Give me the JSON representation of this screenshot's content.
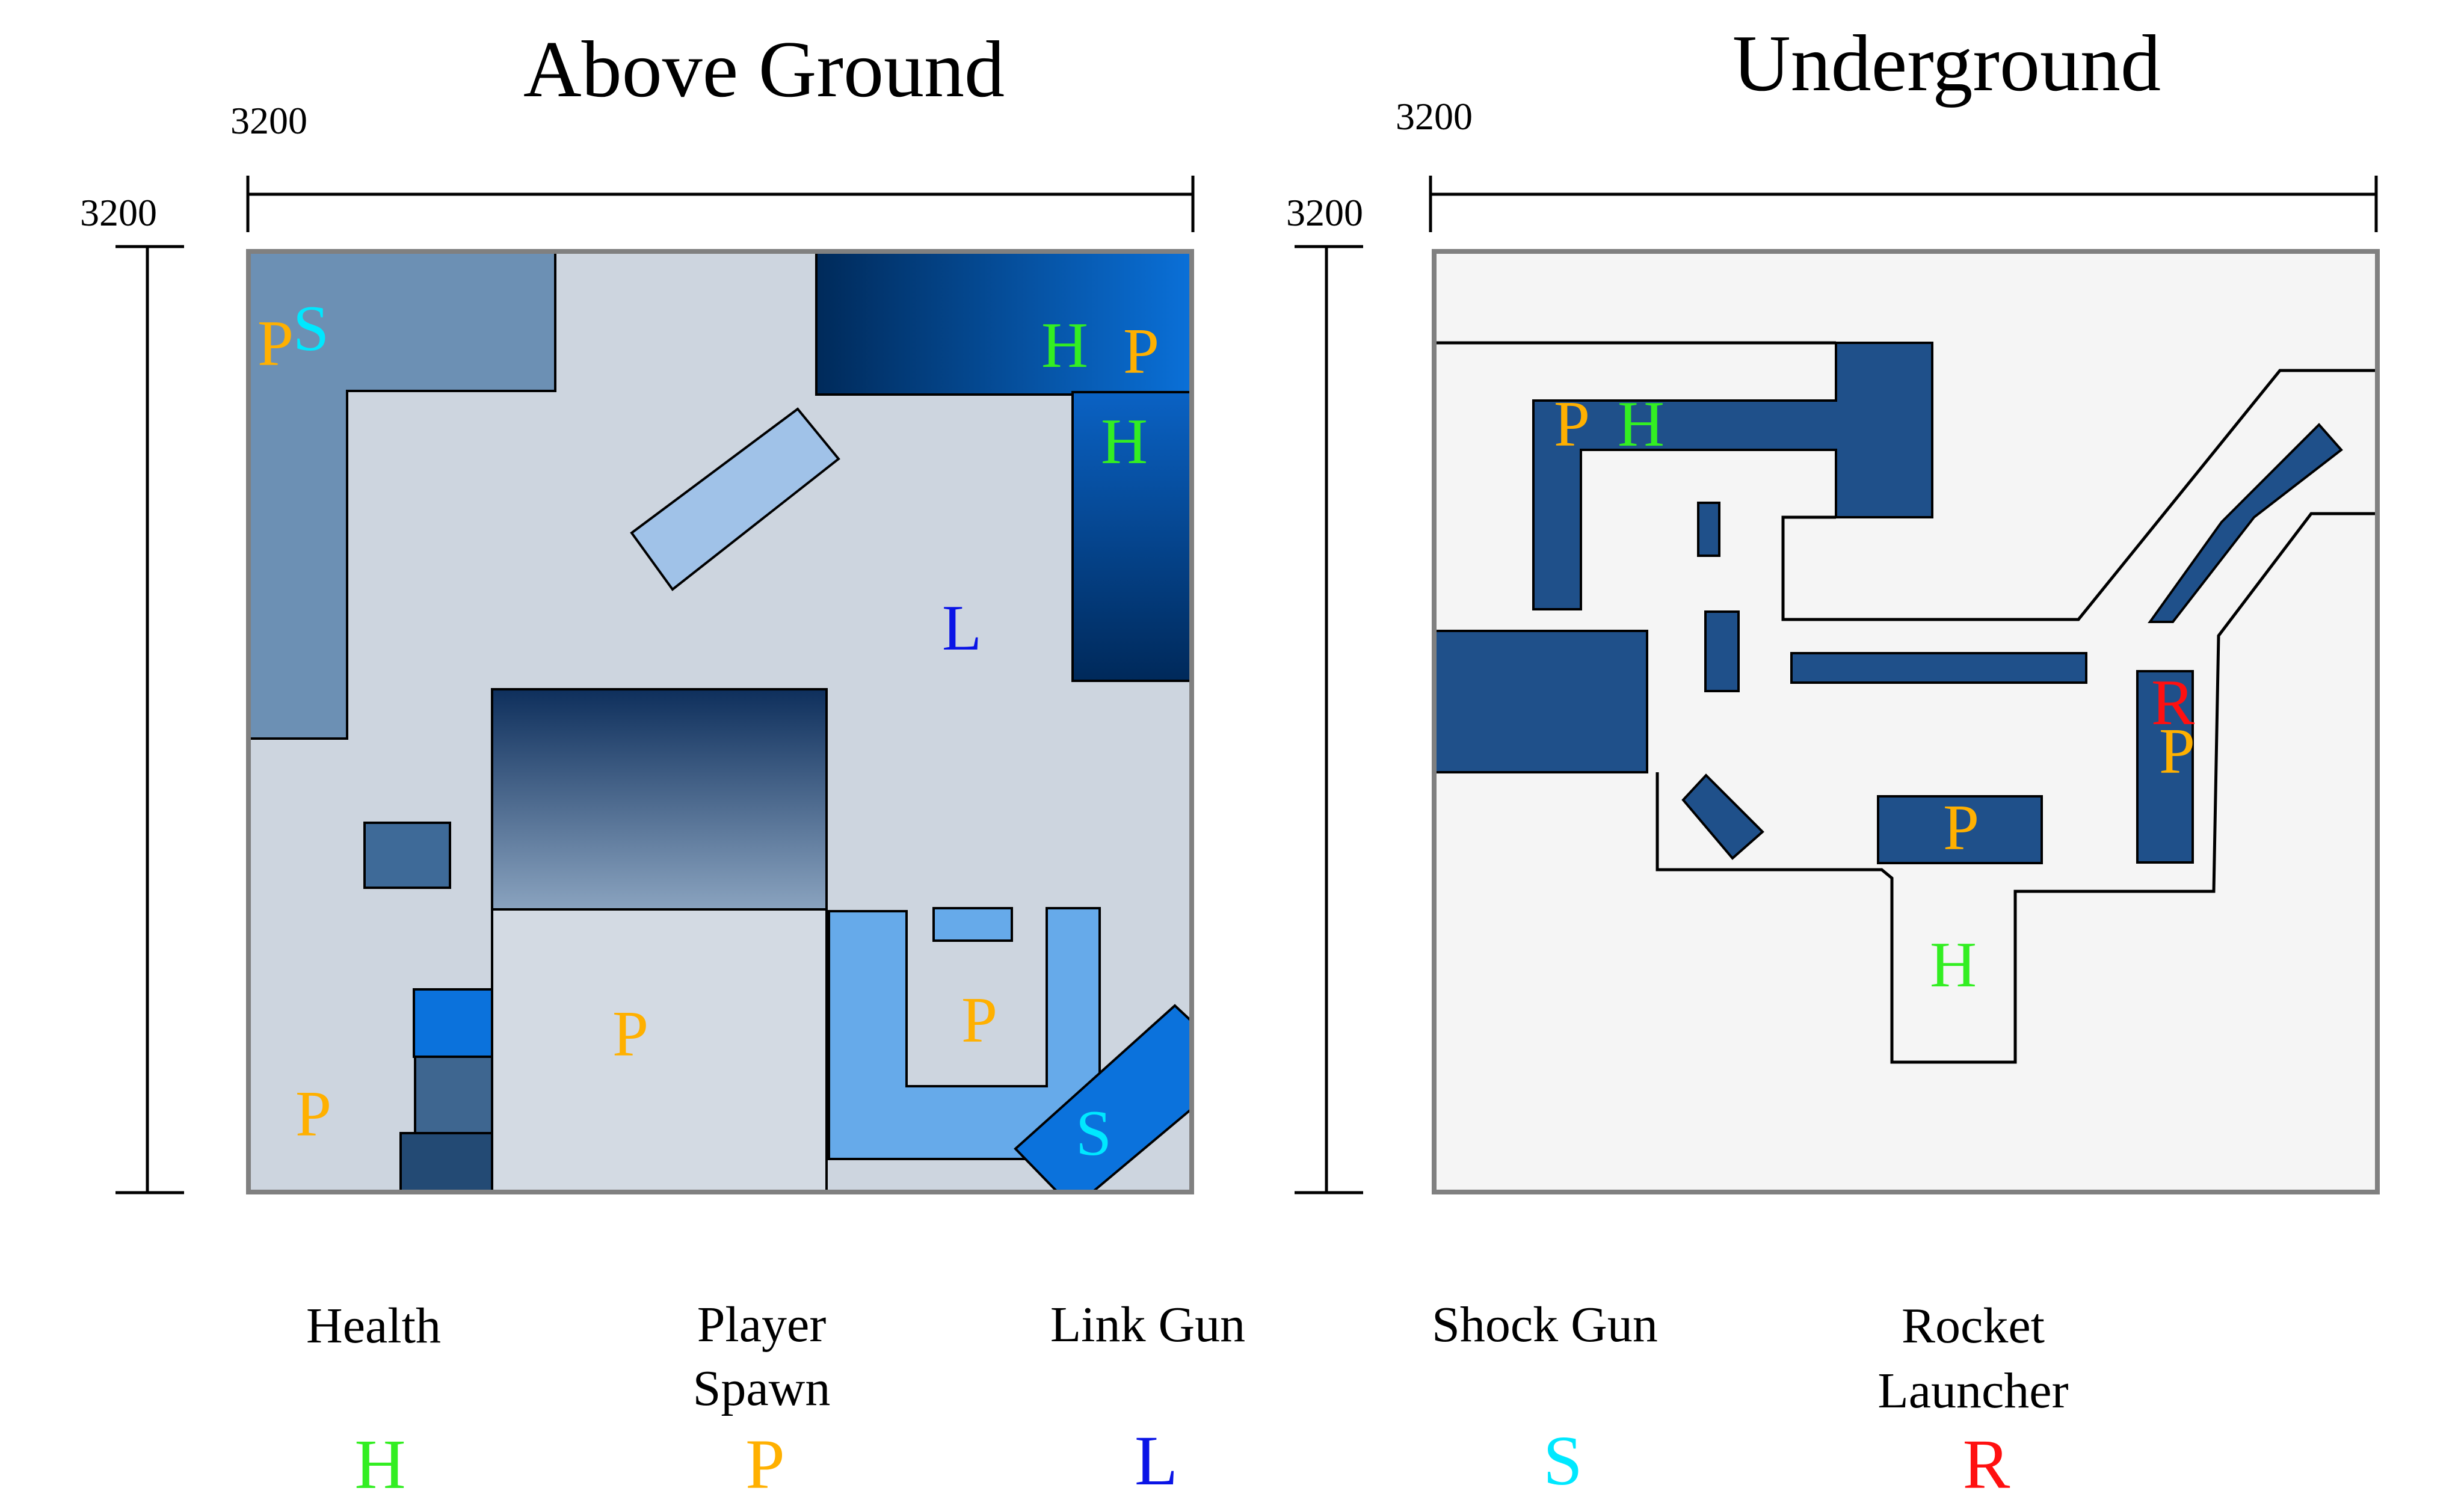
{
  "colors": {
    "health": "#33ee22",
    "spawn": "#ffb000",
    "link": "#0a14e6",
    "shock": "#00e8ff",
    "rocket": "#ff1010",
    "above_floor": "#cdd5df",
    "under_floor": "#f5f5f5",
    "under_block": "#1f508a"
  },
  "maps": {
    "above": {
      "title": "Above Ground",
      "width_label": "3200",
      "height_label": "3200",
      "markers": [
        {
          "symbol": "P",
          "type": "spawn"
        },
        {
          "symbol": "S",
          "type": "shock"
        },
        {
          "symbol": "H",
          "type": "health"
        },
        {
          "symbol": "P",
          "type": "spawn"
        },
        {
          "symbol": "H",
          "type": "health"
        },
        {
          "symbol": "L",
          "type": "link"
        },
        {
          "symbol": "P",
          "type": "spawn"
        },
        {
          "symbol": "P",
          "type": "spawn"
        },
        {
          "symbol": "P",
          "type": "spawn"
        },
        {
          "symbol": "S",
          "type": "shock"
        }
      ]
    },
    "under": {
      "title": "Underground",
      "width_label": "3200",
      "height_label": "3200",
      "markers": [
        {
          "symbol": "P",
          "type": "spawn"
        },
        {
          "symbol": "H",
          "type": "health"
        },
        {
          "symbol": "R",
          "type": "rocket"
        },
        {
          "symbol": "P",
          "type": "spawn"
        },
        {
          "symbol": "P",
          "type": "spawn"
        },
        {
          "symbol": "H",
          "type": "health"
        }
      ]
    }
  },
  "legend": [
    {
      "label_lines": [
        "Health"
      ],
      "symbol": "H",
      "type": "health"
    },
    {
      "label_lines": [
        "Player",
        "Spawn"
      ],
      "symbol": "P",
      "type": "spawn"
    },
    {
      "label_lines": [
        "Link Gun"
      ],
      "symbol": "L",
      "type": "link"
    },
    {
      "label_lines": [
        "Shock Gun"
      ],
      "symbol": "S",
      "type": "shock"
    },
    {
      "label_lines": [
        "Rocket",
        "Launcher"
      ],
      "symbol": "R",
      "type": "rocket"
    }
  ]
}
